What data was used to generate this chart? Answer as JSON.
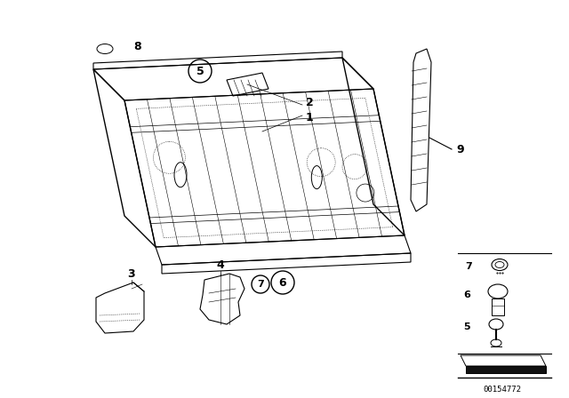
{
  "bg_color": "#ffffff",
  "diagram_id": "00154772",
  "lw": 0.8,
  "lc": "black"
}
